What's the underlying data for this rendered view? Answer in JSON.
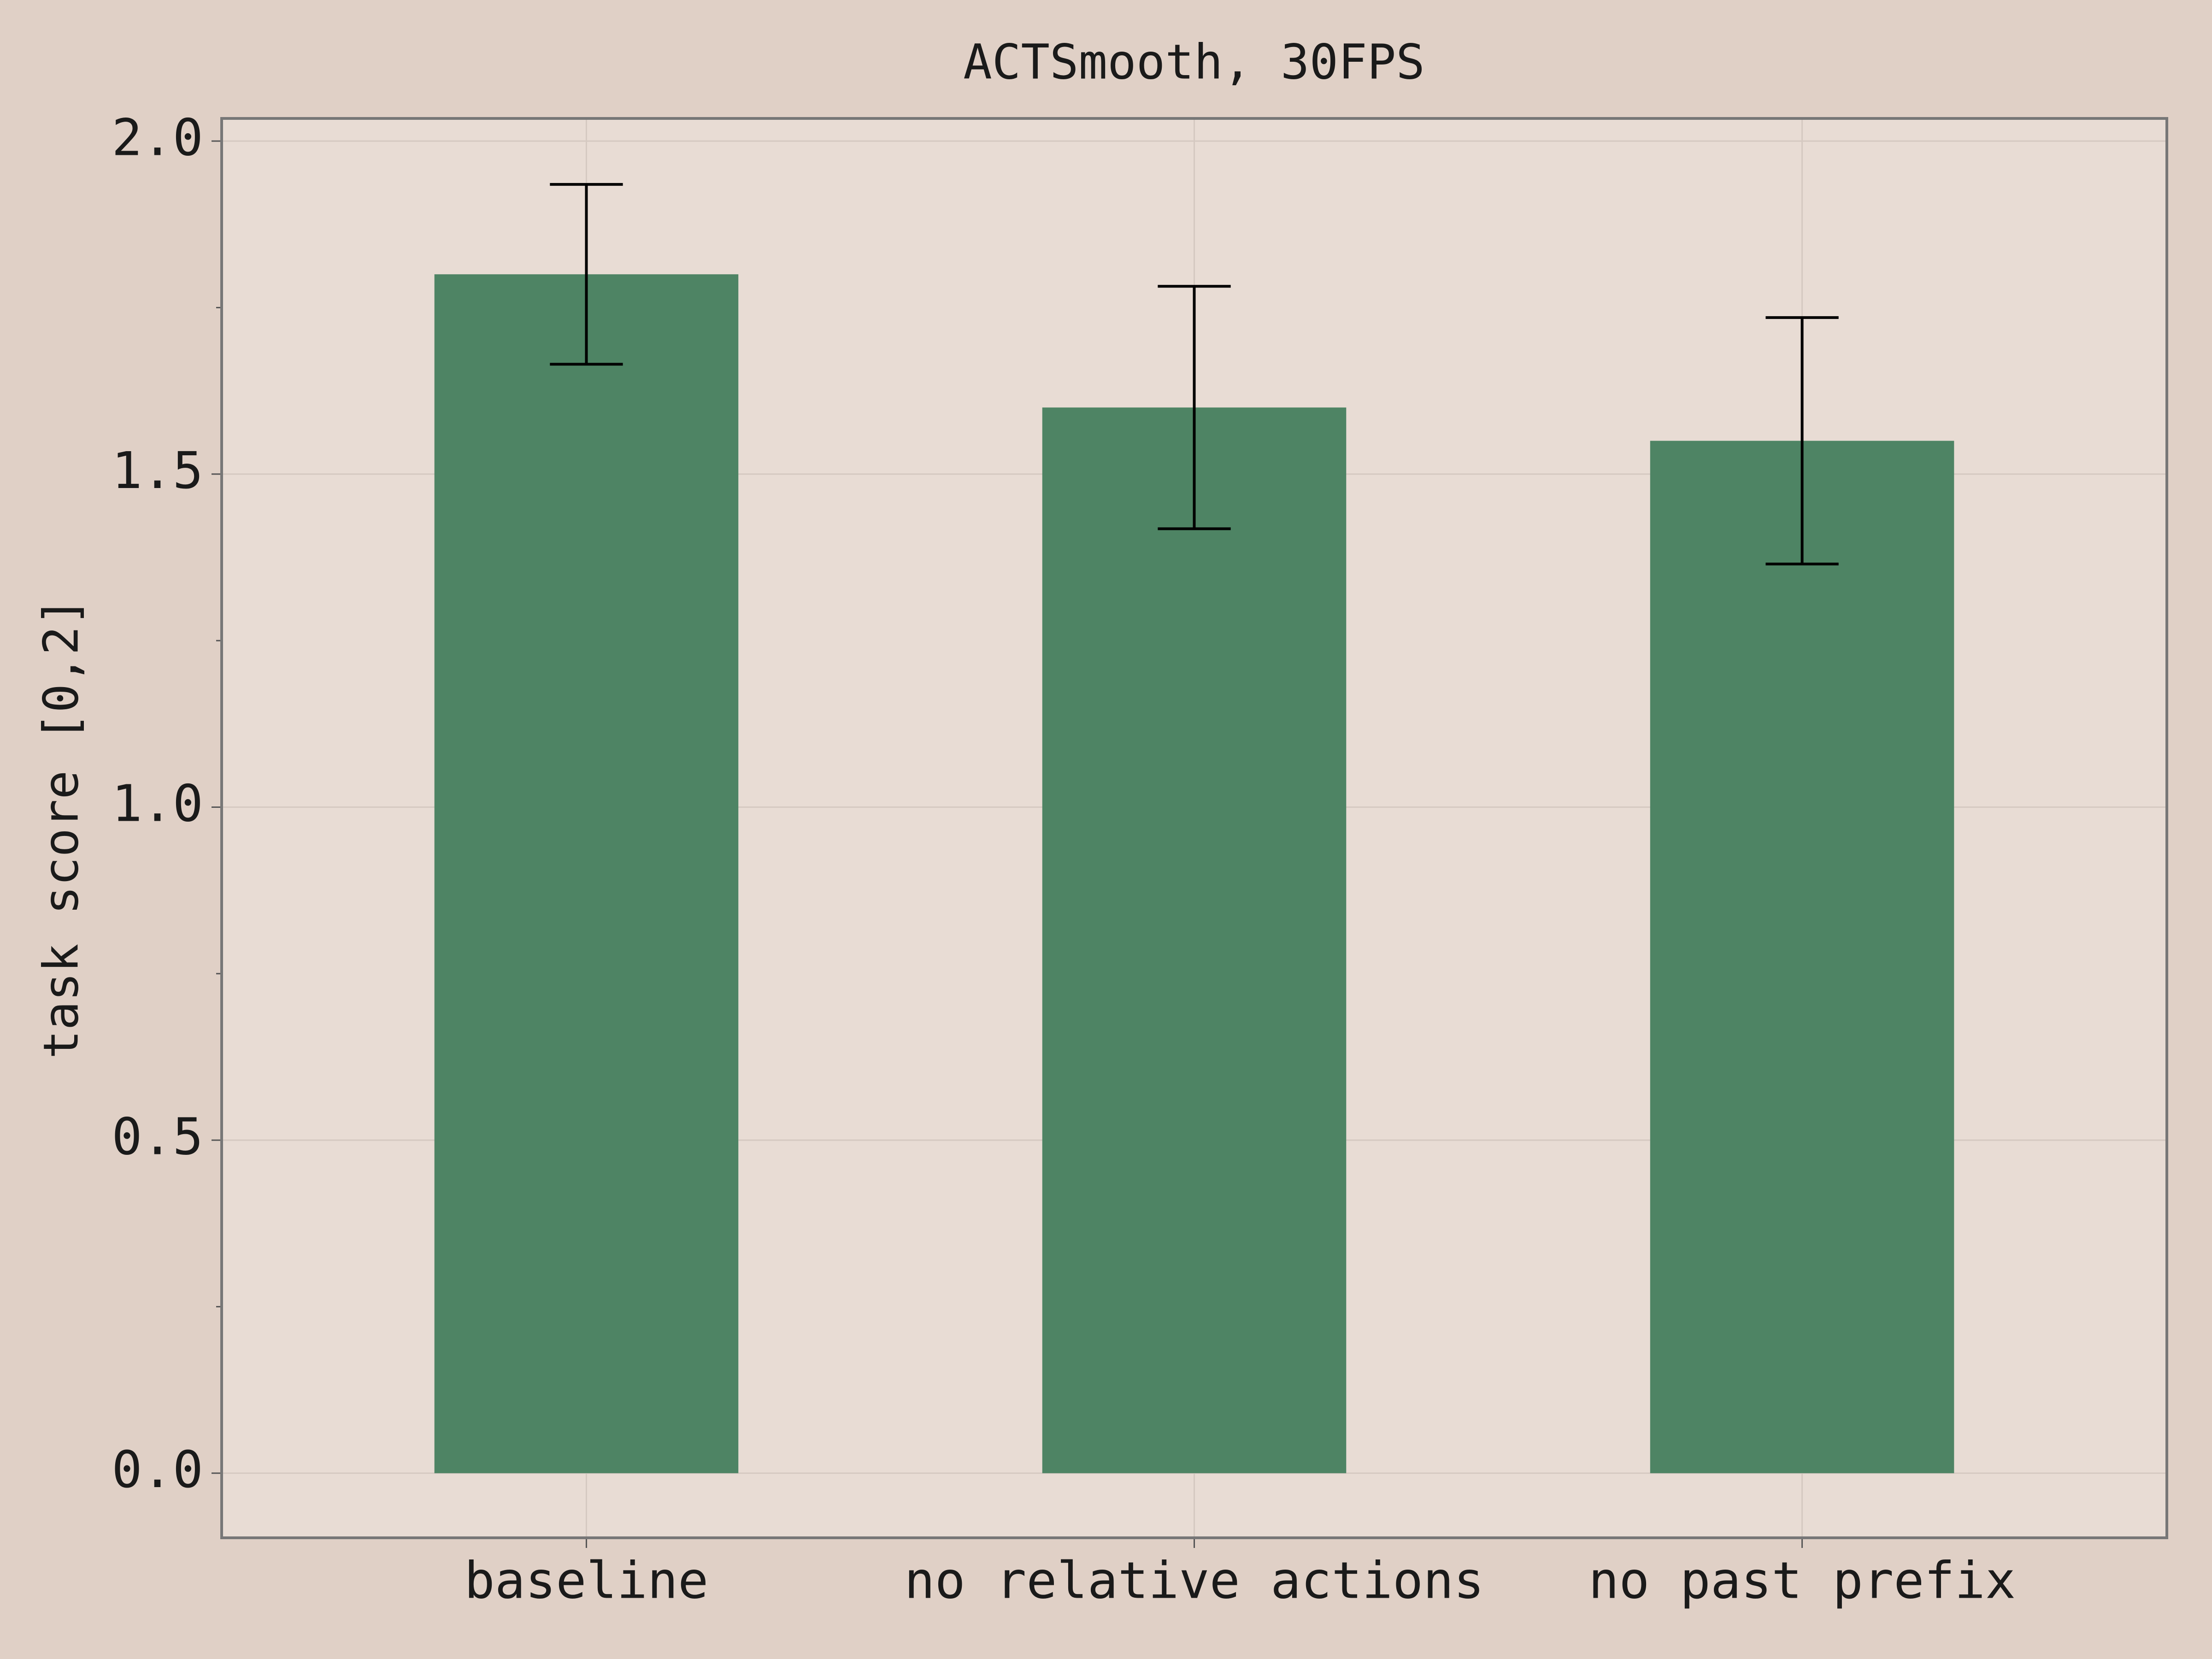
{
  "chart_data": {
    "type": "bar",
    "title": "ACTSmooth, 30FPS",
    "ylabel": "task score [0,2]",
    "categories": [
      "baseline",
      "no relative actions",
      "no past prefix"
    ],
    "series": [
      {
        "color": "#4e8464",
        "values": [
          1.8,
          1.6,
          1.55
        ],
        "errors": [
          0.135,
          0.182,
          0.185
        ]
      }
    ],
    "ylim": [
      -0.097,
      2.034
    ],
    "yticks": [
      {
        "value": 0,
        "label": "0.0"
      },
      0.5,
      {
        "value": 1,
        "label": "1.0"
      },
      1.5,
      {
        "value": 2,
        "label": "2.0"
      }
    ],
    "yminor": [
      0.25,
      0.75,
      1.25,
      1.75
    ],
    "grid": true
  }
}
